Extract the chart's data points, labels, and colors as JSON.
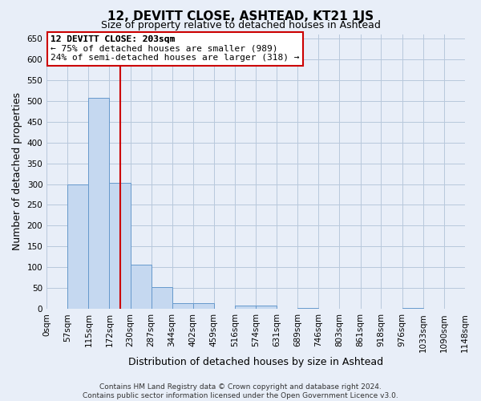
{
  "title": "12, DEVITT CLOSE, ASHTEAD, KT21 1JS",
  "subtitle": "Size of property relative to detached houses in Ashtead",
  "xlabel": "Distribution of detached houses by size in Ashtead",
  "ylabel": "Number of detached properties",
  "footer_lines": [
    "Contains HM Land Registry data © Crown copyright and database right 2024.",
    "Contains public sector information licensed under the Open Government Licence v3.0."
  ],
  "bin_edges": [
    0,
    57,
    115,
    172,
    230,
    287,
    344,
    402,
    459,
    516,
    574,
    631,
    689,
    746,
    803,
    861,
    918,
    976,
    1033,
    1090,
    1148
  ],
  "bin_labels": [
    "0sqm",
    "57sqm",
    "115sqm",
    "172sqm",
    "230sqm",
    "287sqm",
    "344sqm",
    "402sqm",
    "459sqm",
    "516sqm",
    "574sqm",
    "631sqm",
    "689sqm",
    "746sqm",
    "803sqm",
    "861sqm",
    "918sqm",
    "976sqm",
    "1033sqm",
    "1090sqm",
    "1148sqm"
  ],
  "bar_heights": [
    0,
    300,
    507,
    302,
    107,
    52,
    15,
    15,
    0,
    8,
    8,
    0,
    2,
    0,
    0,
    0,
    0,
    2,
    0,
    0
  ],
  "bar_color": "#c5d8f0",
  "bar_edgecolor": "#6699cc",
  "vline_x": 203,
  "vline_color": "#cc0000",
  "ylim": [
    0,
    660
  ],
  "yticks": [
    0,
    50,
    100,
    150,
    200,
    250,
    300,
    350,
    400,
    450,
    500,
    550,
    600,
    650
  ],
  "annotation_title": "12 DEVITT CLOSE: 203sqm",
  "annotation_line1": "← 75% of detached houses are smaller (989)",
  "annotation_line2": "24% of semi-detached houses are larger (318) →",
  "annotation_box_facecolor": "#ffffff",
  "annotation_box_edgecolor": "#cc0000",
  "bg_color": "#e8eef8",
  "plot_bg_color": "#e8eef8",
  "grid_color": "#d0d8e8",
  "title_fontsize": 11,
  "subtitle_fontsize": 9,
  "ylabel_fontsize": 9,
  "xlabel_fontsize": 9,
  "tick_fontsize": 7.5,
  "annot_fontsize": 8,
  "footer_fontsize": 6.5
}
